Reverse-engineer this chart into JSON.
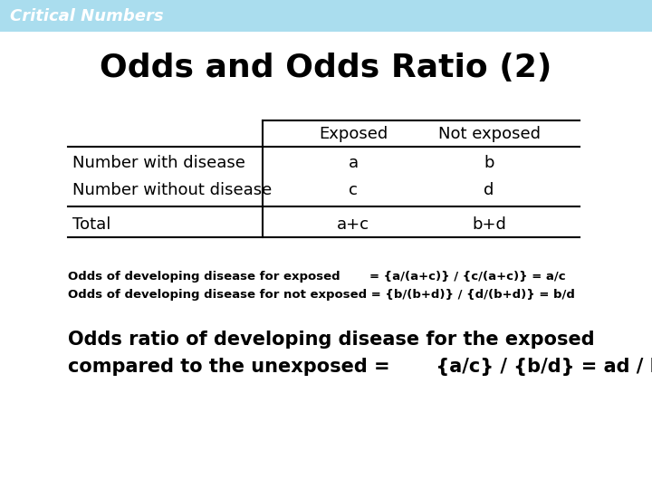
{
  "title": "Odds and Odds Ratio (2)",
  "header_bg": "#aaddee",
  "header_text": "Critical Numbers",
  "bg_color": "#ffffff",
  "table": {
    "col_headers": [
      "Exposed",
      "Not exposed"
    ],
    "row_labels": [
      "Number with disease",
      "Number without disease",
      "Total"
    ],
    "cells": [
      [
        "a",
        "b"
      ],
      [
        "c",
        "d"
      ],
      [
        "a+c",
        "b+d"
      ]
    ]
  },
  "small_text_line1": "Odds of developing disease for exposed       = {a/(a+c)} / {c/(a+c)} = a/c",
  "small_text_line2": "Odds of developing disease for not exposed = {b/(b+d)} / {d/(b+d)} = b/d",
  "large_text_line1": "Odds ratio of developing disease for the exposed",
  "large_text_line2": "compared to the unexposed =       {a/c} / {b/d} = ad / bc"
}
